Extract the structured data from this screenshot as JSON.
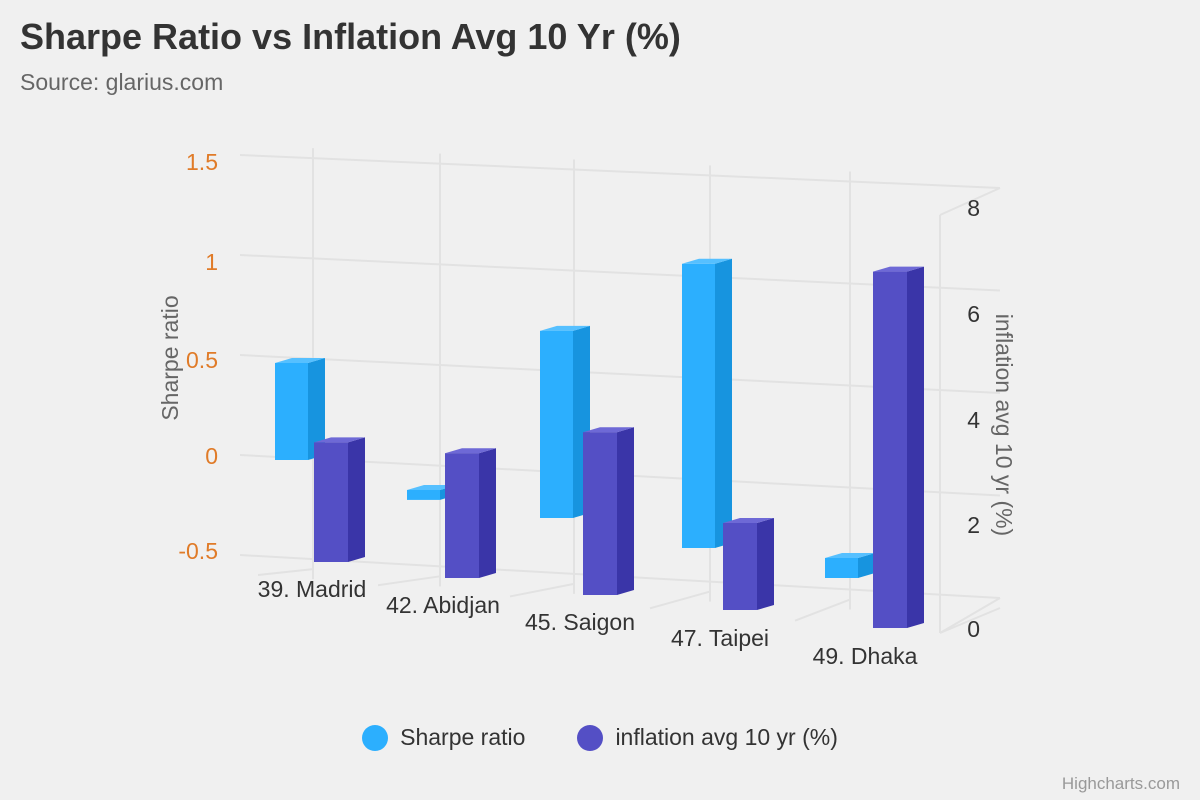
{
  "title": "Sharpe Ratio vs Inflation Avg 10 Yr (%)",
  "subtitle": "Source: glarius.com",
  "credits": "Highcharts.com",
  "colors": {
    "sharpe": "#2caffe",
    "sharpe_side": "#1794df",
    "sharpe_top": "#56c0ff",
    "inflation": "#544fc5",
    "inflation_side": "#3a35a8",
    "inflation_top": "#6e69d6",
    "left_axis_labels": "#e07b28",
    "grid": "#e2e2e2"
  },
  "chart_data": {
    "type": "bar",
    "categories": [
      "39. Madrid",
      "42. Abidjan",
      "45. Saigon",
      "47. Taipei",
      "49. Dhaka"
    ],
    "series": [
      {
        "name": "Sharpe ratio",
        "axis": "left",
        "values": [
          0.5,
          -0.05,
          0.95,
          1.45,
          0.1
        ]
      },
      {
        "name": "inflation avg 10 yr (%)",
        "axis": "right",
        "values": [
          2.3,
          2.6,
          3.7,
          1.5,
          6.6
        ]
      }
    ],
    "y_left": {
      "label": "Sharpe ratio",
      "ticks": [
        "1.5",
        "1",
        "0.5",
        "0",
        "-0.5"
      ],
      "range": [
        -0.5,
        1.5
      ]
    },
    "y_right": {
      "label": "inflation avg 10 yr (%)",
      "ticks": [
        "8",
        "6",
        "4",
        "2",
        "0"
      ],
      "range": [
        0,
        8
      ]
    },
    "legend_position": "bottom-center",
    "grid": true,
    "three_d": true
  }
}
